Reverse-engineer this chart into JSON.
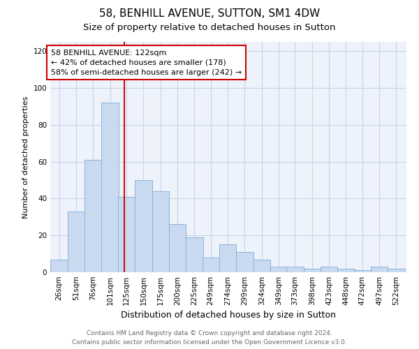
{
  "title": "58, BENHILL AVENUE, SUTTON, SM1 4DW",
  "subtitle": "Size of property relative to detached houses in Sutton",
  "xlabel": "Distribution of detached houses by size in Sutton",
  "ylabel": "Number of detached properties",
  "bar_labels": [
    "26sqm",
    "51sqm",
    "76sqm",
    "101sqm",
    "125sqm",
    "150sqm",
    "175sqm",
    "200sqm",
    "225sqm",
    "249sqm",
    "274sqm",
    "299sqm",
    "324sqm",
    "349sqm",
    "373sqm",
    "398sqm",
    "423sqm",
    "448sqm",
    "472sqm",
    "497sqm",
    "522sqm"
  ],
  "bar_heights": [
    7,
    33,
    61,
    92,
    41,
    50,
    44,
    26,
    19,
    8,
    15,
    11,
    7,
    3,
    3,
    2,
    3,
    2,
    1,
    3,
    2
  ],
  "bar_color": "#c9d9f0",
  "bar_edge_color": "#8ab4d8",
  "ylim": [
    0,
    125
  ],
  "yticks": [
    0,
    20,
    40,
    60,
    80,
    100,
    120
  ],
  "marker_label": "58 BENHILL AVENUE: 122sqm",
  "annotation_line1": "← 42% of detached houses are smaller (178)",
  "annotation_line2": "58% of semi-detached houses are larger (242) →",
  "annotation_box_color": "#ffffff",
  "annotation_box_edge_color": "#cc0000",
  "vline_color": "#cc0000",
  "footer1": "Contains HM Land Registry data © Crown copyright and database right 2024.",
  "footer2": "Contains public sector information licensed under the Open Government Licence v3.0.",
  "title_fontsize": 11,
  "subtitle_fontsize": 9.5,
  "xlabel_fontsize": 9,
  "ylabel_fontsize": 8,
  "tick_fontsize": 7.5,
  "annotation_fontsize": 8,
  "footer_fontsize": 6.5,
  "background_color": "#eef2fb",
  "grid_color": "#c8d4ea",
  "bin_width": 25,
  "vline_x": 122,
  "xlim_left": 13,
  "xlim_right": 537
}
